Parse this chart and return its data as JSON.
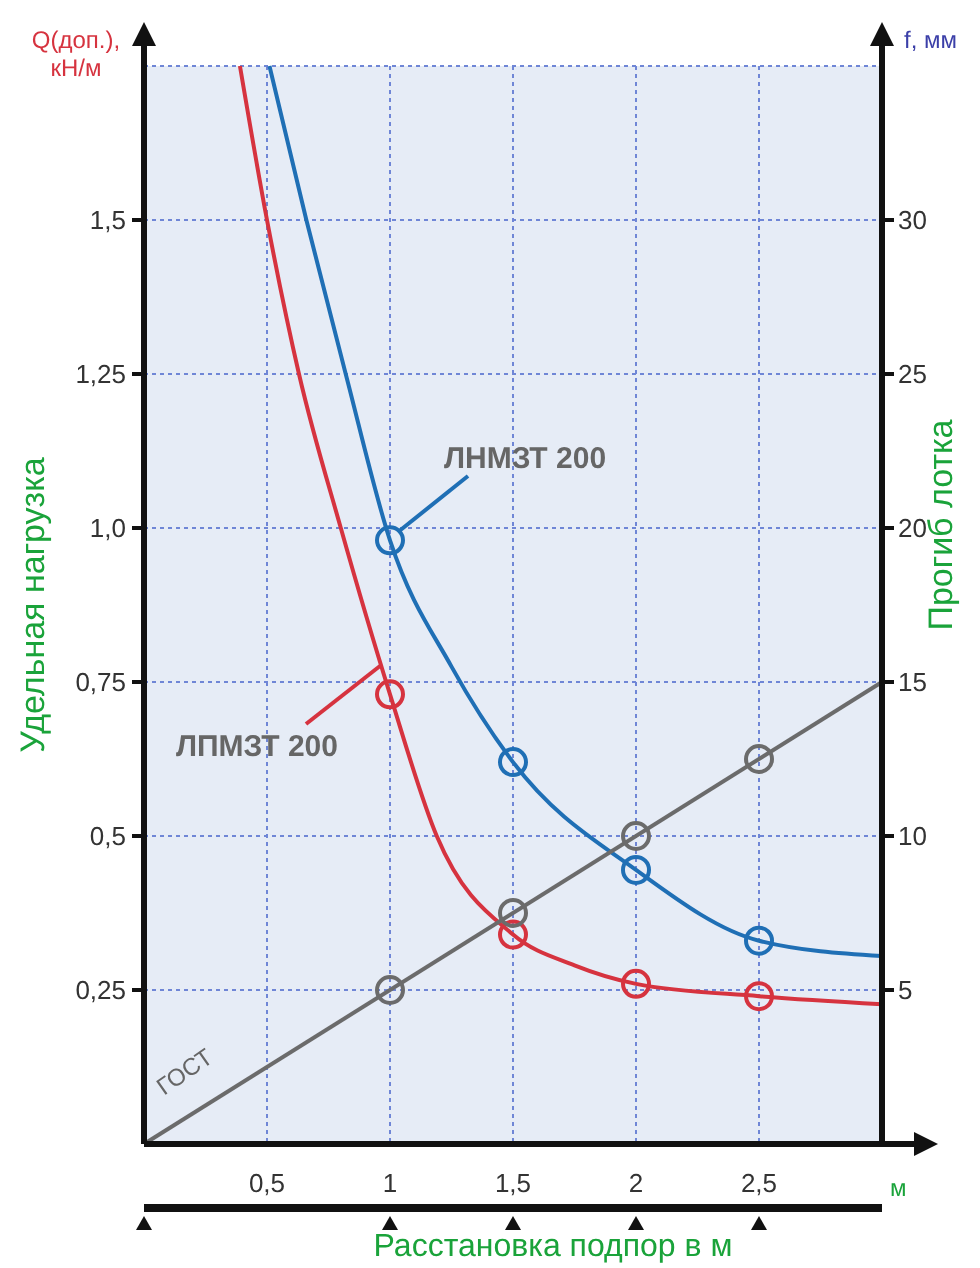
{
  "chart_data": {
    "type": "line",
    "xlabel": "Расстановка подпор в м",
    "ylabel": "Удельная нагрузка",
    "y2label": "Прогиб лотка",
    "annotations": [
      "Q(доп.), кН/м",
      "f, мм",
      "м"
    ],
    "xlim": [
      0,
      3
    ],
    "xticks": [
      {
        "value": 0.5,
        "label": "0,5"
      },
      1,
      {
        "value": 1.5,
        "label": "1,5"
      },
      2,
      {
        "value": 2.5,
        "label": "2,5"
      }
    ],
    "ylim": [
      0,
      1.75
    ],
    "yticks": [
      {
        "value": 0.25,
        "label": "0,25"
      },
      {
        "value": 0.5,
        "label": "0,5"
      },
      {
        "value": 0.75,
        "label": "0,75"
      },
      {
        "value": 1,
        "label": "1,0"
      },
      {
        "value": 1.25,
        "label": "1,25"
      },
      {
        "value": 1.5,
        "label": "1,5"
      }
    ],
    "y2lim": [
      0,
      35
    ],
    "y2ticks": [
      5,
      10,
      15,
      20,
      25,
      30
    ],
    "grid": true,
    "line_style": "solid",
    "series": [
      {
        "type": "line",
        "name": "ЛПМЗТ 200",
        "color": "#d6333f",
        "marker": "none",
        "x": [
          0.39,
          0.5,
          0.63,
          0.8,
          1,
          1.19,
          1.5,
          1.75,
          2,
          2.5,
          3
        ],
        "values": [
          1.75,
          1.5,
          1.25,
          1.0,
          0.73,
          0.5,
          0.34,
          0.29,
          0.26,
          0.24,
          0.227
        ]
      },
      {
        "type": "scatter",
        "color": "#d6333f",
        "marker": "circle",
        "x": [
          1,
          1.5,
          2,
          2.5
        ],
        "values": [
          0.73,
          0.34,
          0.26,
          0.24
        ]
      },
      {
        "type": "line",
        "name": "ЛНМЗТ 200",
        "color": "#1f6fb5",
        "marker": "none",
        "axis": "y2",
        "x": [
          0.51,
          0.66,
          0.82,
          1,
          1.25,
          1.5,
          2,
          2.5,
          3
        ],
        "values": [
          35,
          30,
          25,
          19.6,
          15.5,
          12.4,
          8.9,
          6.6,
          6.1
        ]
      },
      {
        "type": "scatter",
        "color": "#1f6fb5",
        "marker": "circle",
        "axis": "y2",
        "x": [
          1,
          1.5,
          2,
          2.5
        ],
        "values": [
          19.6,
          12.4,
          8.9,
          6.6
        ]
      },
      {
        "type": "line",
        "name": "ГОСТ",
        "color": "#6b6b6b",
        "marker": "none",
        "axis": "y2",
        "x": [
          0,
          3
        ],
        "values": [
          0,
          15
        ]
      },
      {
        "type": "scatter",
        "color": "#6b6b6b",
        "marker": "circle",
        "axis": "y2",
        "x": [
          1,
          1.5,
          2,
          2.5
        ],
        "values": [
          5,
          7.5,
          10,
          12.5
        ]
      }
    ]
  }
}
